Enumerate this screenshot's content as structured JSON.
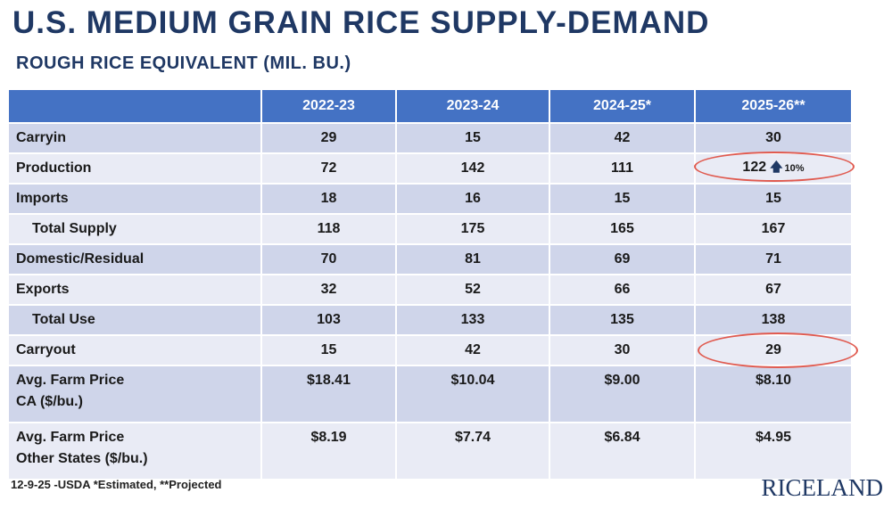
{
  "title": "U.S. MEDIUM GRAIN RICE SUPPLY-DEMAND",
  "subtitle": "ROUGH RICE EQUIVALENT (MIL. BU.)",
  "table": {
    "headers": [
      "",
      "2022-23",
      "2023-24",
      "2024-25*",
      "2025-26**"
    ],
    "rows": [
      {
        "label": "Carryin",
        "values": [
          "29",
          "15",
          "42",
          "30"
        ]
      },
      {
        "label": "Production",
        "values": [
          "72",
          "142",
          "111",
          "122"
        ],
        "change": "10%"
      },
      {
        "label": "Imports",
        "values": [
          "18",
          "16",
          "15",
          "15"
        ]
      },
      {
        "label": "Total Supply",
        "values": [
          "118",
          "175",
          "165",
          "167"
        ]
      },
      {
        "label": "Domestic/Residual",
        "values": [
          "70",
          "81",
          "69",
          "71"
        ]
      },
      {
        "label": "Exports",
        "values": [
          "32",
          "52",
          "66",
          "67"
        ]
      },
      {
        "label": "Total Use",
        "values": [
          "103",
          "133",
          "135",
          "138"
        ]
      },
      {
        "label": "Carryout",
        "values": [
          "15",
          "42",
          "30",
          "29"
        ]
      },
      {
        "label_line1": "Avg. Farm Price",
        "label_line2": "CA ($/bu.)",
        "values": [
          "$18.41",
          "$10.04",
          "$9.00",
          "$8.10"
        ]
      },
      {
        "label_line1": "Avg. Farm Price",
        "label_line2": "Other States ($/bu.)",
        "values": [
          "$8.19",
          "$7.74",
          "$6.84",
          "$4.95"
        ]
      }
    ]
  },
  "footnote": "12-9-25 -USDA *Estimated, **Projected",
  "logo_text": "RICELAND",
  "colors": {
    "title": "#1f3864",
    "header_bg": "#4472c4",
    "row_dark": "#cfd5ea",
    "row_light": "#e9ebf5",
    "highlight_ring": "#e05a4f"
  },
  "icons": {
    "production_change": "up-arrow-icon"
  }
}
